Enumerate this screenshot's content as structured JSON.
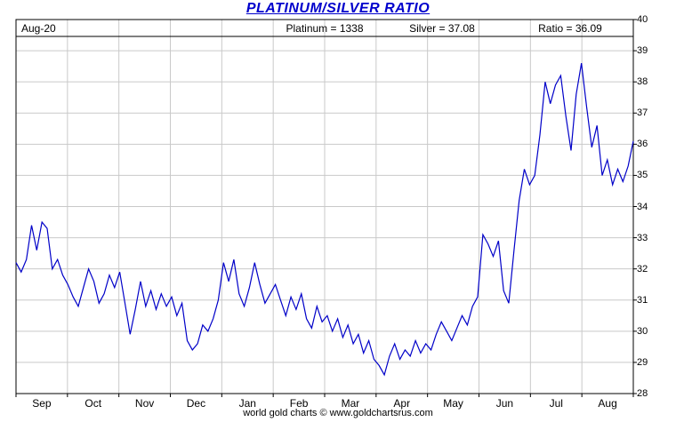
{
  "title": "PLATINUM/SILVER RATIO",
  "header": {
    "date": "Aug-20",
    "platinum": "Platinum = 1338",
    "silver": "Silver = 37.08",
    "ratio": "Ratio = 36.09"
  },
  "footer": "world gold charts © www.goldchartsrus.com",
  "colors": {
    "line": "#0000c8",
    "title": "#0000cc",
    "grid": "#c9c9c9",
    "frame": "#000000"
  },
  "chart_data": {
    "type": "line",
    "title": "PLATINUM/SILVER RATIO",
    "series_name": "Platinum/Silver Ratio",
    "x_months": [
      "Sep",
      "Oct",
      "Nov",
      "Dec",
      "Jan",
      "Feb",
      "Mar",
      "Apr",
      "May",
      "Jun",
      "Jul",
      "Aug"
    ],
    "ylim": [
      28,
      40
    ],
    "yticks": [
      28,
      29,
      30,
      31,
      32,
      33,
      34,
      35,
      36,
      37,
      38,
      39,
      40
    ],
    "grid": true,
    "legend_position": "none",
    "last_values": {
      "platinum": 1338,
      "silver": 37.08,
      "ratio": 36.09
    },
    "values": [
      32.2,
      31.9,
      32.3,
      33.4,
      32.6,
      33.5,
      33.3,
      32.0,
      32.3,
      31.8,
      31.5,
      31.1,
      30.8,
      31.4,
      32.0,
      31.6,
      30.9,
      31.2,
      31.8,
      31.4,
      31.9,
      30.9,
      29.9,
      30.7,
      31.6,
      30.8,
      31.3,
      30.7,
      31.2,
      30.8,
      31.1,
      30.5,
      30.9,
      29.7,
      29.4,
      29.6,
      30.2,
      30.0,
      30.4,
      31.0,
      32.2,
      31.6,
      32.3,
      31.2,
      30.8,
      31.4,
      32.2,
      31.5,
      30.9,
      31.2,
      31.5,
      31.0,
      30.5,
      31.1,
      30.7,
      31.2,
      30.4,
      30.1,
      30.8,
      30.3,
      30.5,
      30.0,
      30.4,
      29.8,
      30.2,
      29.6,
      29.9,
      29.3,
      29.7,
      29.1,
      28.9,
      28.6,
      29.2,
      29.6,
      29.1,
      29.4,
      29.2,
      29.7,
      29.3,
      29.6,
      29.4,
      29.9,
      30.3,
      30.0,
      29.7,
      30.1,
      30.5,
      30.2,
      30.8,
      31.1,
      33.1,
      32.8,
      32.4,
      32.9,
      31.3,
      30.9,
      32.6,
      34.2,
      35.2,
      34.7,
      35.0,
      36.3,
      38.0,
      37.3,
      37.9,
      38.2,
      36.9,
      35.8,
      37.6,
      38.6,
      37.2,
      35.9,
      36.6,
      35.0,
      35.5,
      34.7,
      35.2,
      34.8,
      35.3,
      36.1
    ]
  }
}
